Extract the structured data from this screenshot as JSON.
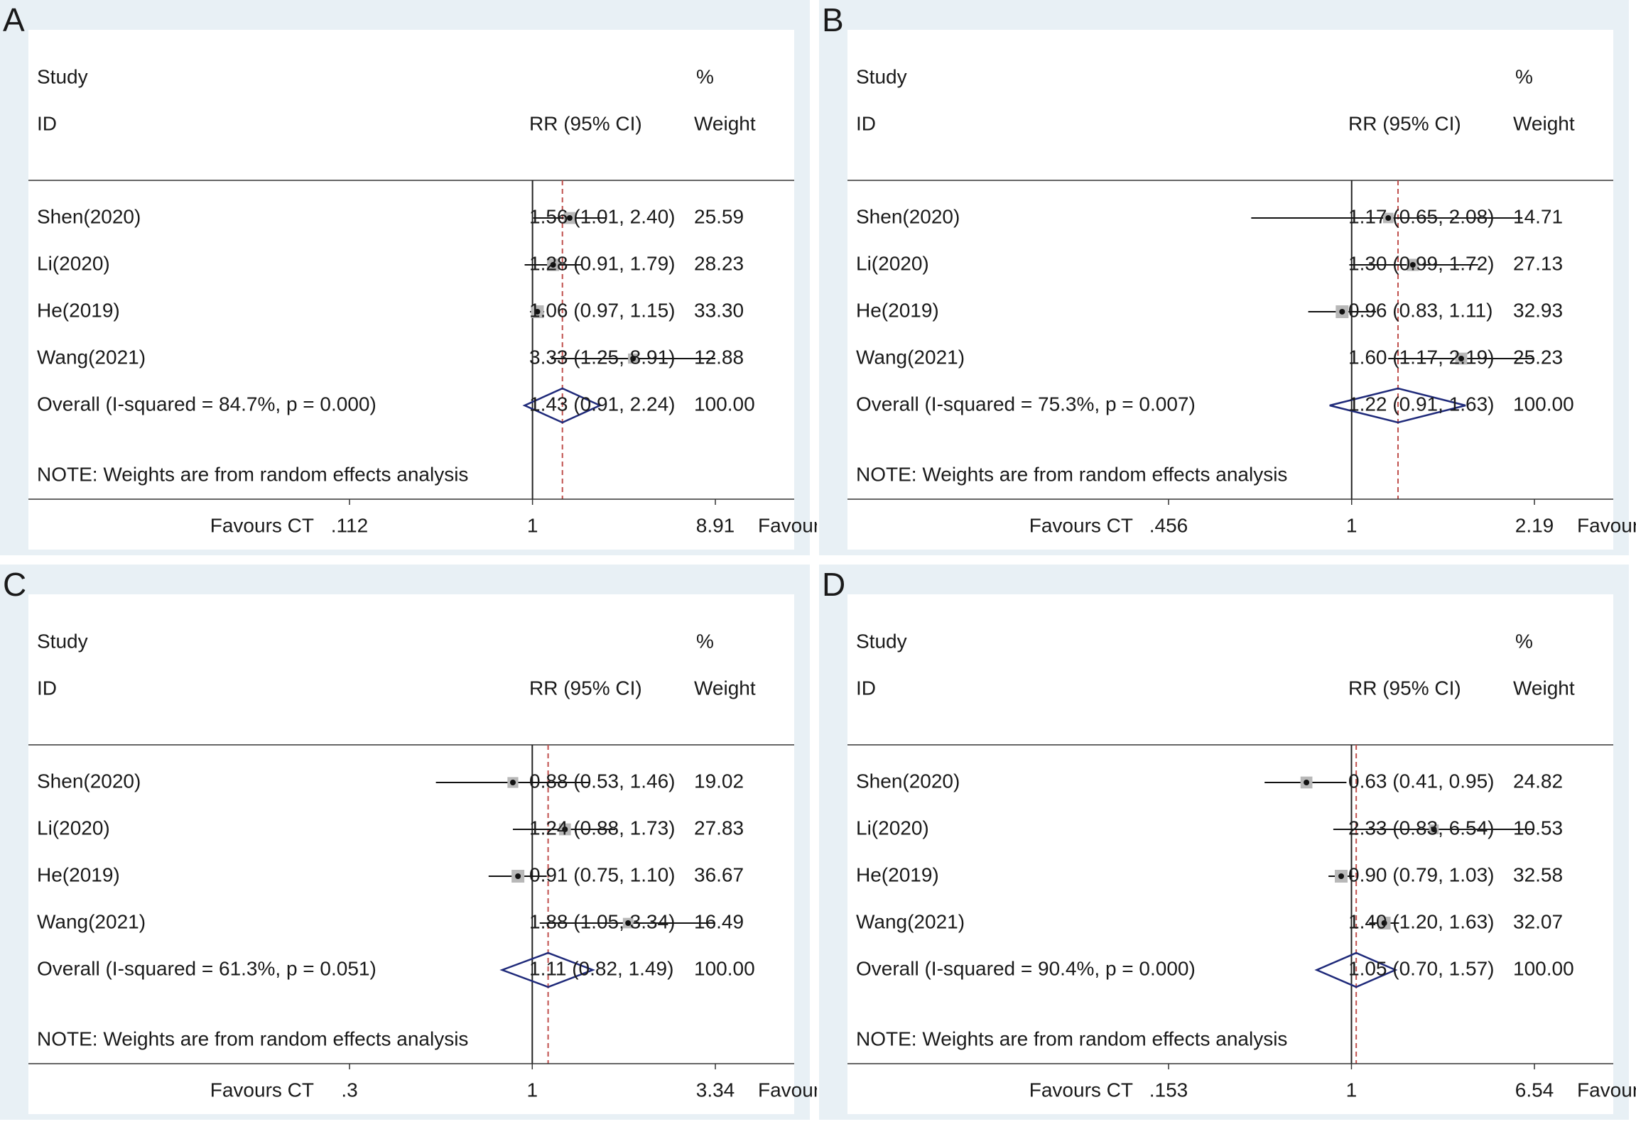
{
  "figure": {
    "background": "#e8f0f5",
    "plot_bg": "#ffffff"
  },
  "chart_data": [
    {
      "type": "forest",
      "panel_label": "A",
      "header": {
        "study": "Study",
        "id": "ID",
        "rr": "RR (95% CI)",
        "pct": "%",
        "weight": "Weight"
      },
      "studies": [
        {
          "label": "Shen(2020)",
          "rr": 1.56,
          "lo": 1.01,
          "hi": 2.4,
          "weight": 25.59,
          "ci_text": "1.56 (1.01, 2.40)",
          "weight_text": "25.59"
        },
        {
          "label": "Li(2020)",
          "rr": 1.28,
          "lo": 0.91,
          "hi": 1.79,
          "weight": 28.23,
          "ci_text": "1.28 (0.91, 1.79)",
          "weight_text": "28.23"
        },
        {
          "label": "He(2019)",
          "rr": 1.06,
          "lo": 0.97,
          "hi": 1.15,
          "weight": 33.3,
          "ci_text": "1.06 (0.97, 1.15)",
          "weight_text": "33.30"
        },
        {
          "label": "Wang(2021)",
          "rr": 3.33,
          "lo": 1.25,
          "hi": 8.91,
          "weight": 12.88,
          "ci_text": "3.33 (1.25, 8.91)",
          "weight_text": "12.88"
        }
      ],
      "overall": {
        "label": "Overall  (I-squared = 84.7%, p = 0.000)",
        "rr": 1.43,
        "lo": 0.91,
        "hi": 2.24,
        "ci_text": "1.43 (0.91, 2.24)",
        "weight_text": "100.00"
      },
      "note": "NOTE: Weights are from random effects analysis",
      "axis": {
        "min": 0.112,
        "max": 8.91,
        "scale": "log",
        "ticks": [
          ".112",
          "1",
          "8.91"
        ],
        "left_label": "Favours CT",
        "right_label": "Favours DCEUS"
      }
    },
    {
      "type": "forest",
      "panel_label": "B",
      "header": {
        "study": "Study",
        "id": "ID",
        "rr": "RR (95% CI)",
        "pct": "%",
        "weight": "Weight"
      },
      "studies": [
        {
          "label": "Shen(2020)",
          "rr": 1.17,
          "lo": 0.65,
          "hi": 2.08,
          "weight": 14.71,
          "ci_text": "1.17 (0.65, 2.08)",
          "weight_text": "14.71"
        },
        {
          "label": "Li(2020)",
          "rr": 1.3,
          "lo": 0.99,
          "hi": 1.72,
          "weight": 27.13,
          "ci_text": "1.30 (0.99, 1.72)",
          "weight_text": "27.13"
        },
        {
          "label": "He(2019)",
          "rr": 0.96,
          "lo": 0.83,
          "hi": 1.11,
          "weight": 32.93,
          "ci_text": "0.96 (0.83, 1.11)",
          "weight_text": "32.93"
        },
        {
          "label": "Wang(2021)",
          "rr": 1.6,
          "lo": 1.17,
          "hi": 2.19,
          "weight": 25.23,
          "ci_text": "1.60 (1.17, 2.19)",
          "weight_text": "25.23"
        }
      ],
      "overall": {
        "label": "Overall  (I-squared = 75.3%, p = 0.007)",
        "rr": 1.22,
        "lo": 0.91,
        "hi": 1.63,
        "ci_text": "1.22 (0.91, 1.63)",
        "weight_text": "100.00"
      },
      "note": "NOTE: Weights are from random effects analysis",
      "axis": {
        "min": 0.456,
        "max": 2.19,
        "scale": "log",
        "ticks": [
          ".456",
          "1",
          "2.19"
        ],
        "left_label": "Favours CT",
        "right_label": "Favours DCEUS"
      }
    },
    {
      "type": "forest",
      "panel_label": "C",
      "header": {
        "study": "Study",
        "id": "ID",
        "rr": "RR (95% CI)",
        "pct": "%",
        "weight": "Weight"
      },
      "studies": [
        {
          "label": "Shen(2020)",
          "rr": 0.88,
          "lo": 0.53,
          "hi": 1.46,
          "weight": 19.02,
          "ci_text": "0.88 (0.53, 1.46)",
          "weight_text": "19.02"
        },
        {
          "label": "Li(2020)",
          "rr": 1.24,
          "lo": 0.88,
          "hi": 1.73,
          "weight": 27.83,
          "ci_text": "1.24 (0.88, 1.73)",
          "weight_text": "27.83"
        },
        {
          "label": "He(2019)",
          "rr": 0.91,
          "lo": 0.75,
          "hi": 1.1,
          "weight": 36.67,
          "ci_text": "0.91 (0.75, 1.10)",
          "weight_text": "36.67"
        },
        {
          "label": "Wang(2021)",
          "rr": 1.88,
          "lo": 1.05,
          "hi": 3.34,
          "weight": 16.49,
          "ci_text": "1.88 (1.05, 3.34)",
          "weight_text": "16.49"
        }
      ],
      "overall": {
        "label": "Overall  (I-squared = 61.3%, p = 0.051)",
        "rr": 1.11,
        "lo": 0.82,
        "hi": 1.49,
        "ci_text": "1.11 (0.82, 1.49)",
        "weight_text": "100.00"
      },
      "note": "NOTE: Weights are from random effects analysis",
      "axis": {
        "min": 0.3,
        "max": 3.34,
        "scale": "log",
        "ticks": [
          ".3",
          "1",
          "3.34"
        ],
        "left_label": "Favours CT",
        "right_label": "Favours DCEUS"
      }
    },
    {
      "type": "forest",
      "panel_label": "D",
      "header": {
        "study": "Study",
        "id": "ID",
        "rr": "RR (95% CI)",
        "pct": "%",
        "weight": "Weight"
      },
      "studies": [
        {
          "label": "Shen(2020)",
          "rr": 0.63,
          "lo": 0.41,
          "hi": 0.95,
          "weight": 24.82,
          "ci_text": "0.63 (0.41, 0.95)",
          "weight_text": "24.82"
        },
        {
          "label": "Li(2020)",
          "rr": 2.33,
          "lo": 0.83,
          "hi": 6.54,
          "weight": 10.53,
          "ci_text": "2.33 (0.83, 6.54)",
          "weight_text": "10.53"
        },
        {
          "label": "He(2019)",
          "rr": 0.9,
          "lo": 0.79,
          "hi": 1.03,
          "weight": 32.58,
          "ci_text": "0.90 (0.79, 1.03)",
          "weight_text": "32.58"
        },
        {
          "label": "Wang(2021)",
          "rr": 1.4,
          "lo": 1.2,
          "hi": 1.63,
          "weight": 32.07,
          "ci_text": "1.40 (1.20, 1.63)",
          "weight_text": "32.07"
        }
      ],
      "overall": {
        "label": "Overall  (I-squared = 90.4%, p = 0.000)",
        "rr": 1.05,
        "lo": 0.7,
        "hi": 1.57,
        "ci_text": "1.05 (0.70, 1.57)",
        "weight_text": "100.00"
      },
      "note": "NOTE: Weights are from random effects analysis",
      "axis": {
        "min": 0.153,
        "max": 6.54,
        "scale": "log",
        "ticks": [
          ".153",
          "1",
          "6.54"
        ],
        "left_label": "Favours CT",
        "right_label": "Favours DCEUS"
      }
    }
  ]
}
